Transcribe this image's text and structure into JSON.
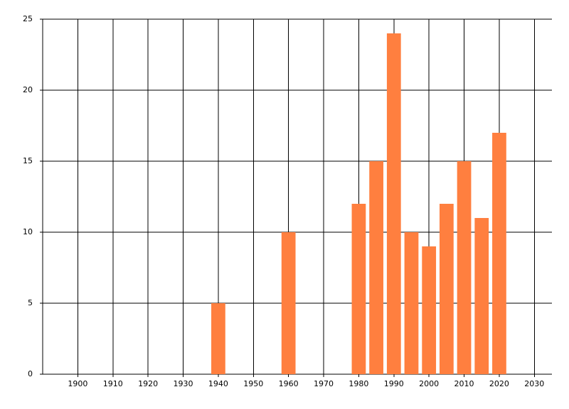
{
  "chart_data": {
    "type": "bar",
    "x": [
      1940,
      1960,
      1980,
      1985,
      1990,
      1995,
      2000,
      2005,
      2010,
      2015,
      2020
    ],
    "values": [
      5,
      10,
      12,
      15,
      24,
      10,
      9,
      12,
      15,
      11,
      17
    ],
    "color": "#ff7f3f",
    "xlim": [
      1890,
      2035
    ],
    "xticks": [
      1900,
      1910,
      1920,
      1930,
      1940,
      1950,
      1960,
      1970,
      1980,
      1990,
      2000,
      2010,
      2020,
      2030
    ],
    "ylim": [
      0,
      25
    ],
    "yticks": [
      0,
      5,
      10,
      15,
      20,
      25
    ],
    "grid": true
  }
}
